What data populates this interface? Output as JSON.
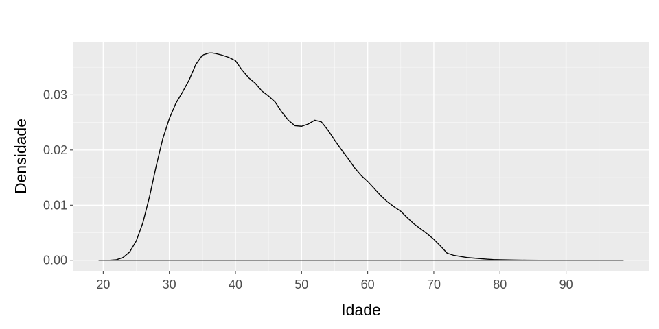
{
  "chart_data": {
    "type": "area",
    "geom": "density",
    "xlabel": "Idade",
    "ylabel": "Densidade",
    "xlim": [
      15.5,
      102.5
    ],
    "ylim": [
      -0.0019,
      0.0395
    ],
    "x_ticks": [
      20,
      30,
      40,
      50,
      60,
      70,
      80,
      90
    ],
    "y_ticks": [
      0.0,
      0.01,
      0.02,
      0.03
    ],
    "y_tick_labels": [
      "0.00",
      "0.01",
      "0.02",
      "0.03"
    ],
    "grid": true,
    "series": [
      {
        "x": [
          19.3,
          21,
          22,
          23,
          24,
          25,
          26,
          27,
          28,
          29,
          30,
          31,
          32,
          33,
          34,
          35,
          36,
          36.5,
          37,
          38,
          39,
          40,
          41,
          42,
          43,
          44,
          45,
          46,
          47,
          48,
          49,
          50,
          51,
          52,
          53,
          54,
          55,
          56,
          57,
          58,
          59,
          60,
          61,
          62,
          63,
          64,
          65,
          66,
          67,
          68,
          69,
          70,
          71,
          72,
          73,
          74,
          75,
          76,
          77,
          78,
          79,
          80,
          82,
          84,
          86,
          88,
          90,
          92,
          94,
          96,
          98.7
        ],
        "y": [
          0.0,
          0.0,
          0.0001,
          0.0005,
          0.0015,
          0.0035,
          0.0068,
          0.0115,
          0.017,
          0.022,
          0.0257,
          0.0285,
          0.0305,
          0.0327,
          0.0355,
          0.0372,
          0.0376,
          0.0376,
          0.0375,
          0.0372,
          0.0368,
          0.0362,
          0.0345,
          0.0331,
          0.0321,
          0.0307,
          0.0298,
          0.0287,
          0.0269,
          0.0254,
          0.0244,
          0.0243,
          0.0247,
          0.0254,
          0.0251,
          0.0236,
          0.0218,
          0.0201,
          0.0185,
          0.0168,
          0.0154,
          0.0143,
          0.013,
          0.0117,
          0.0106,
          0.0097,
          0.0089,
          0.0077,
          0.0066,
          0.0057,
          0.0048,
          0.0038,
          0.0026,
          0.0013,
          0.0009,
          0.0007,
          0.0005,
          0.0004,
          0.0003,
          0.0002,
          0.00013,
          0.0001,
          5e-05,
          2e-05,
          1e-05,
          0.0,
          0.0,
          0.0,
          0.0,
          0.0,
          0.0
        ]
      }
    ]
  },
  "colors": {
    "panel_bg": "#ebebeb",
    "grid_major": "#ffffff",
    "line": "#000000",
    "tick": "#333333",
    "tick_text": "#4d4d4d"
  }
}
